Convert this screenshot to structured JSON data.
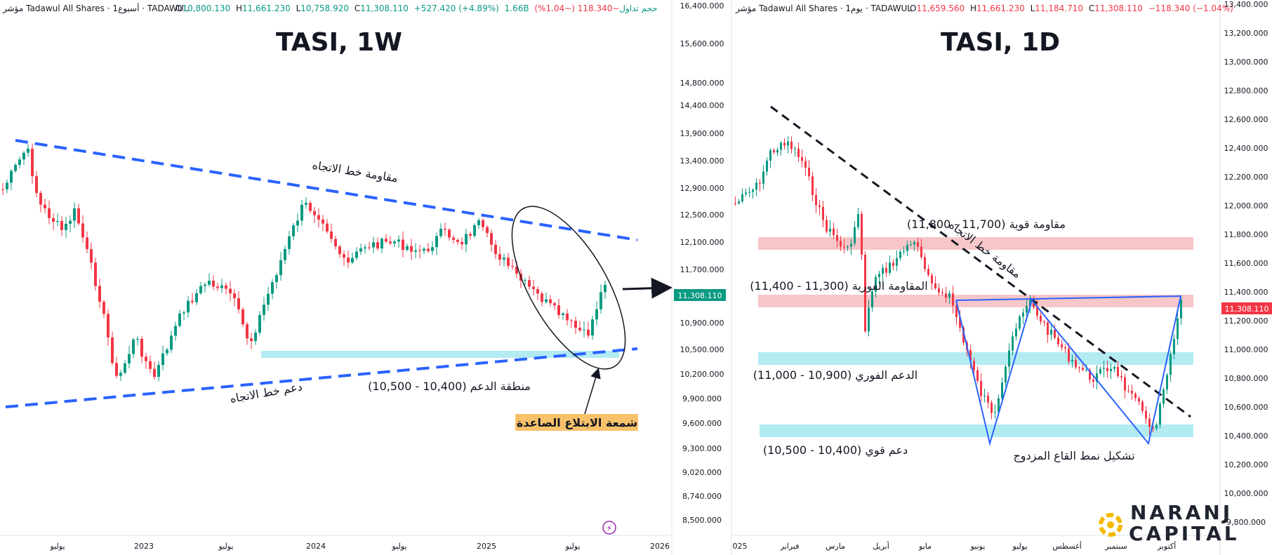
{
  "colors": {
    "up": "#089981",
    "down": "#f23645",
    "trendline": "#2962ff",
    "resistance_zone": "#f7c6c9",
    "support_zone": "#b2ebf2",
    "current_price_bg": "#089981",
    "current_price_bg_daily": "#f23645",
    "label_bg": "#f8c26b"
  },
  "chart_data": [
    {
      "type": "candlestick",
      "title": "TASI, 1W",
      "header": {
        "symbol": "مؤشر Tadawul All Shares · أسبوع1 · TADAWUL",
        "open_label": "O",
        "open": "10,800.130",
        "high_label": "H",
        "high": "11,661.230",
        "low_label": "L",
        "low": "10,758.920",
        "close_label": "C",
        "close": "11,308.110",
        "change": "+527.420 (+4.89%)",
        "volume": "1.66B حجم تداول",
        "extra": "−118.340 (−1.04%)"
      },
      "y_ticks": [
        "16,400.000",
        "15,600.000",
        "14,800.000",
        "14,400.000",
        "13,900.000",
        "13,400.000",
        "12,900.000",
        "12,500.000",
        "12,100.000",
        "11,700.000",
        "10,900.000",
        "10,500.000",
        "10,200.000",
        "9,900.000",
        "9,600.000",
        "9,300.000",
        "9,020.000",
        "8,740.000",
        "8,500.000"
      ],
      "x_ticks": [
        "يوليو",
        "2023",
        "يوليو",
        "2024",
        "يوليو",
        "2025",
        "يوليو",
        "2026"
      ],
      "current_price": "11,308.110",
      "ylim": [
        8500,
        16400
      ],
      "annotations": {
        "resistance_trendline": "مقاومة خط الاتجاه",
        "support_trendline": "دعم خط الاتجاه",
        "support_zone": "منطقة الدعم (10,400 - 10,500)",
        "bullish_engulfing": "شمعة الابتلاع الصاعدة"
      }
    },
    {
      "type": "candlestick",
      "title": "TASI, 1D",
      "header": {
        "symbol": "مؤشر Tadawul All Shares · يوم1 · TADAWUL",
        "open_label": "O",
        "open": "11,659.560",
        "high_label": "H",
        "high": "11,661.230",
        "low_label": "L",
        "low": "11,184.710",
        "close_label": "C",
        "close": "11,308.110",
        "change": "−118.340 (−1.04%)"
      },
      "y_ticks": [
        "13,400.000",
        "13,200.000",
        "13,000.000",
        "12,800.000",
        "12,600.000",
        "12,400.000",
        "12,200.000",
        "12,000.000",
        "11,800.000",
        "11,600.000",
        "11,400.000",
        "11,200.000",
        "11,000.000",
        "10,800.000",
        "10,600.000",
        "10,400.000",
        "10,200.000",
        "10,000.000",
        "9,800.000"
      ],
      "x_ticks": [
        "025",
        "فبراير",
        "مارس",
        "أبريل",
        "مايو",
        "يونيو",
        "يوليو",
        "أغسطس",
        "سبتمبر",
        "أكتوبر"
      ],
      "current_price": "11,308.110",
      "ylim": [
        9800,
        13400
      ],
      "annotations": {
        "trendline_resistance": "مقاومة خط الاتجاه",
        "strong_resistance": "مقاومة قوية (11,700 - 11,800)",
        "immediate_resistance": "المقاومة الفورية (11,300 - 11,400)",
        "immediate_support": "الدعم الفوري (10,900 - 11,000)",
        "strong_support": "دعم قوي (10,400 - 10,500)",
        "double_bottom": "تشكيل نمط القاع المزدوج"
      }
    }
  ],
  "brand": {
    "line1": "NARANJ",
    "line2": "CAPITAL"
  }
}
